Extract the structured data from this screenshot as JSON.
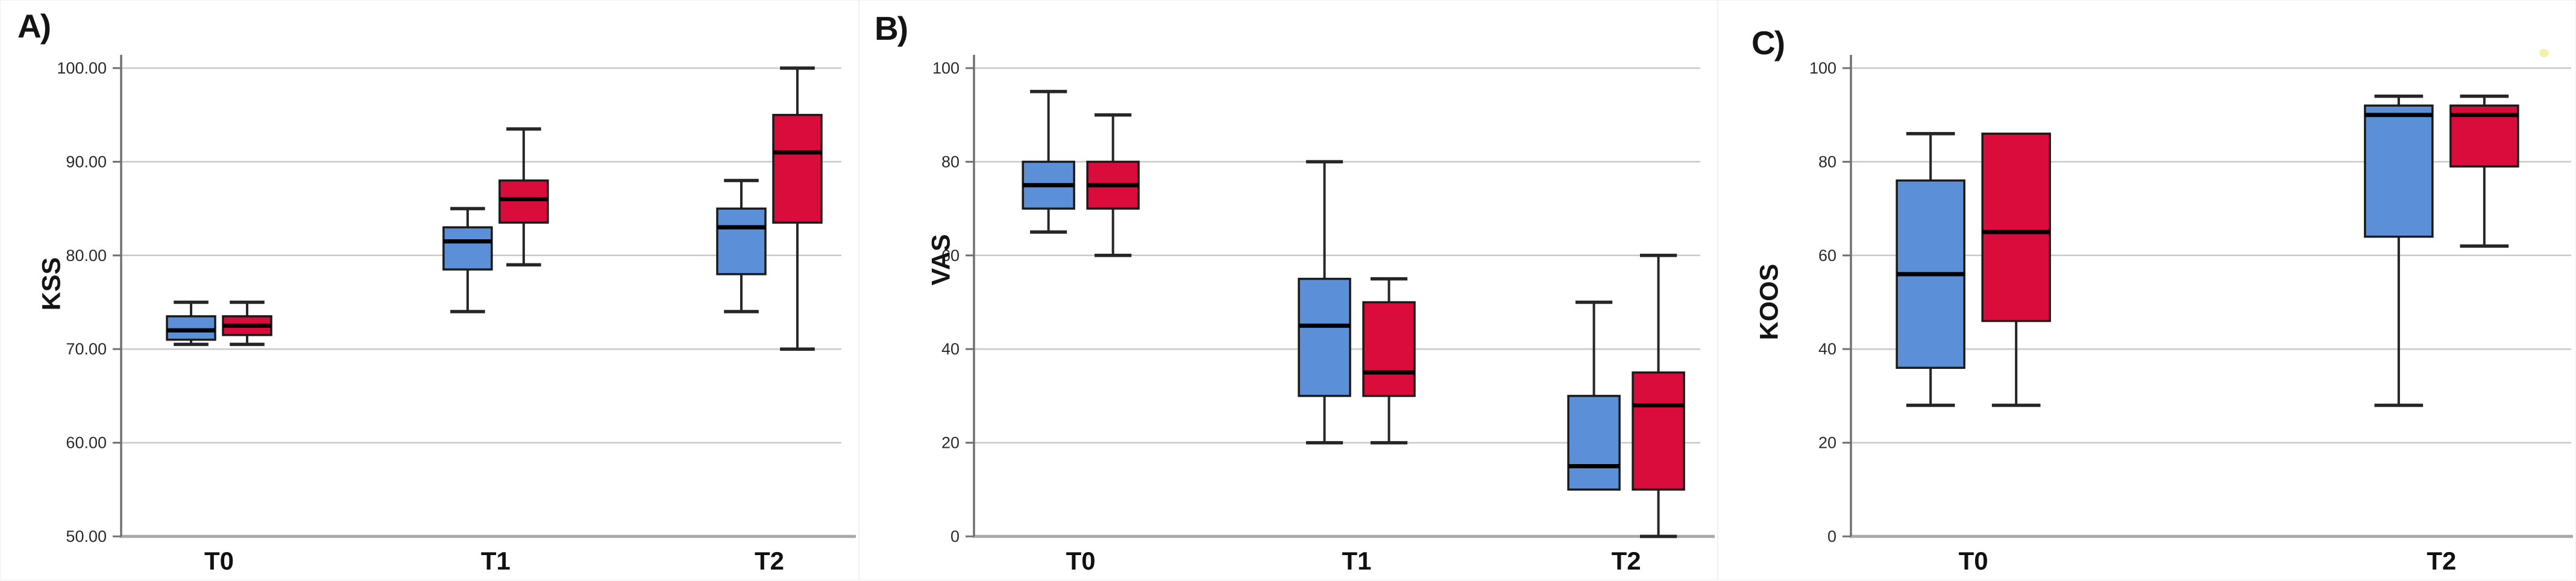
{
  "colors": {
    "box_blue": "#5B8FD8",
    "box_red": "#DA0C3C",
    "box_border": "#1a1a1a",
    "median_line": "#000000",
    "whisker": "#262626",
    "gridline": "#c9c9c9",
    "y_axis": "#707070",
    "x_baseline": "#a8a8a8",
    "tick_text": "#2a2a2a",
    "category_text": "#111111",
    "stray_mark": "#f2eda2"
  },
  "chart_data": [
    {
      "type": "boxplot",
      "panel_label": "A)",
      "ylabel": "KSS",
      "ylim": [
        50,
        100
      ],
      "grid": true,
      "legend": "none",
      "yticks": [
        {
          "label": "100.00",
          "value": 100
        },
        {
          "label": "90.00",
          "value": 90
        },
        {
          "label": "80.00",
          "value": 80
        },
        {
          "label": "70.00",
          "value": 70
        },
        {
          "label": "60.00",
          "value": 60
        },
        {
          "label": "50.00",
          "value": 50
        }
      ],
      "categories": [
        "T0",
        "T1",
        "T2"
      ],
      "series": [
        {
          "name": "blue",
          "color": "#5B8FD8",
          "boxes": [
            {
              "category": "T0",
              "min": 70.5,
              "q1": 71,
              "median": 72,
              "q3": 73.5,
              "max": 75
            },
            {
              "category": "T1",
              "min": 74,
              "q1": 78.5,
              "median": 81.5,
              "q3": 83,
              "max": 85
            },
            {
              "category": "T2",
              "min": 74,
              "q1": 78,
              "median": 83,
              "q3": 85,
              "max": 88
            }
          ]
        },
        {
          "name": "red",
          "color": "#DA0C3C",
          "boxes": [
            {
              "category": "T0",
              "min": 70.5,
              "q1": 71.5,
              "median": 72.5,
              "q3": 73.5,
              "max": 75
            },
            {
              "category": "T1",
              "min": 79,
              "q1": 83.5,
              "median": 86,
              "q3": 88,
              "max": 93.5
            },
            {
              "category": "T2",
              "min": 70,
              "q1": 83.5,
              "median": 91,
              "q3": 95,
              "max": 100
            }
          ]
        }
      ]
    },
    {
      "type": "boxplot",
      "panel_label": "B)",
      "ylabel": "VAS",
      "ylim": [
        0,
        100
      ],
      "grid": true,
      "legend": "none",
      "yticks": [
        {
          "label": "100",
          "value": 100
        },
        {
          "label": "80",
          "value": 80
        },
        {
          "label": "60",
          "value": 60
        },
        {
          "label": "40",
          "value": 40
        },
        {
          "label": "20",
          "value": 20
        },
        {
          "label": "0",
          "value": 0
        }
      ],
      "categories": [
        "T0",
        "T1",
        "T2"
      ],
      "series": [
        {
          "name": "blue",
          "color": "#5B8FD8",
          "boxes": [
            {
              "category": "T0",
              "min": 65,
              "q1": 70,
              "median": 75,
              "q3": 80,
              "max": 95
            },
            {
              "category": "T1",
              "min": 20,
              "q1": 30,
              "median": 45,
              "q3": 55,
              "max": 80
            },
            {
              "category": "T2",
              "min": 10,
              "q1": 10,
              "median": 15,
              "q3": 30,
              "max": 50
            }
          ]
        },
        {
          "name": "red",
          "color": "#DA0C3C",
          "boxes": [
            {
              "category": "T0",
              "min": 60,
              "q1": 70,
              "median": 75,
              "q3": 80,
              "max": 90
            },
            {
              "category": "T1",
              "min": 20,
              "q1": 30,
              "median": 35,
              "q3": 50,
              "max": 55
            },
            {
              "category": "T2",
              "min": 0,
              "q1": 10,
              "median": 28,
              "q3": 35,
              "max": 60
            }
          ]
        }
      ]
    },
    {
      "type": "boxplot",
      "panel_label": "C)",
      "ylabel": "KOOS",
      "ylim": [
        0,
        100
      ],
      "grid": true,
      "legend": "none",
      "yticks": [
        {
          "label": "100",
          "value": 100
        },
        {
          "label": "80",
          "value": 80
        },
        {
          "label": "60",
          "value": 60
        },
        {
          "label": "40",
          "value": 40
        },
        {
          "label": "20",
          "value": 20
        },
        {
          "label": "0",
          "value": 0
        }
      ],
      "categories": [
        "T0",
        "T2"
      ],
      "series": [
        {
          "name": "blue",
          "color": "#5B8FD8",
          "boxes": [
            {
              "category": "T0",
              "min": 28,
              "q1": 36,
              "median": 56,
              "q3": 76,
              "max": 86
            },
            {
              "category": "T2",
              "min": 28,
              "q1": 64,
              "median": 90,
              "q3": 92,
              "max": 94
            }
          ]
        },
        {
          "name": "red",
          "color": "#DA0C3C",
          "boxes": [
            {
              "category": "T0",
              "min": 28,
              "q1": 46,
              "median": 65,
              "q3": 86,
              "max": 86
            },
            {
              "category": "T2",
              "min": 62,
              "q1": 79,
              "median": 90,
              "q3": 92,
              "max": 94
            }
          ]
        }
      ]
    }
  ]
}
